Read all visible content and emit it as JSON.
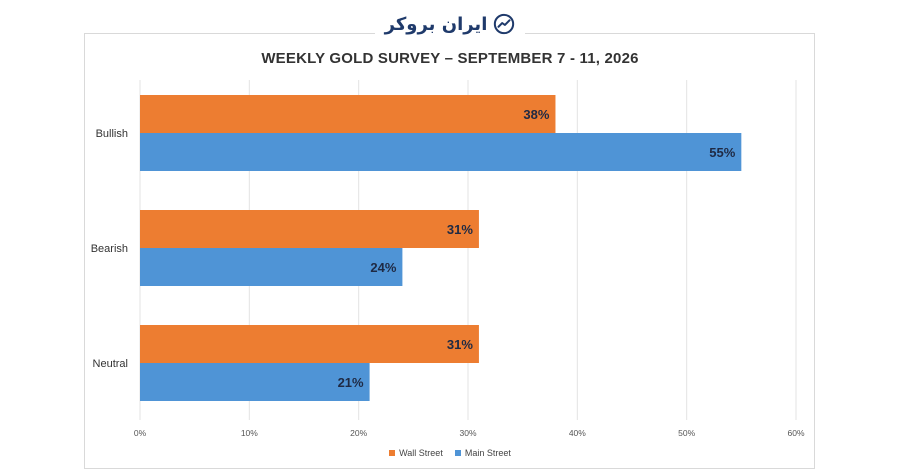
{
  "logo": {
    "text": "ایران بروکر",
    "icon": "trend-chart-icon",
    "color": "#1f3a6b"
  },
  "chart_data": {
    "type": "bar",
    "orientation": "horizontal",
    "title": "WEEKLY GOLD SURVEY – SEPTEMBER 7 - 11, 2026",
    "categories": [
      "Bullish",
      "Bearish",
      "Neutral"
    ],
    "series": [
      {
        "name": "Wall Street",
        "values": [
          38,
          31,
          31
        ],
        "color": "#ed7d31"
      },
      {
        "name": "Main Street",
        "values": [
          55,
          24,
          21
        ],
        "color": "#4f94d6"
      }
    ],
    "value_suffix": "%",
    "xlim": [
      0,
      60
    ],
    "xticks": [
      0,
      10,
      20,
      30,
      40,
      50,
      60
    ],
    "xtick_labels": [
      "0%",
      "10%",
      "20%",
      "30%",
      "40%",
      "50%",
      "60%"
    ],
    "xlabel": "",
    "ylabel": "",
    "grid": true,
    "legend_position": "bottom"
  }
}
